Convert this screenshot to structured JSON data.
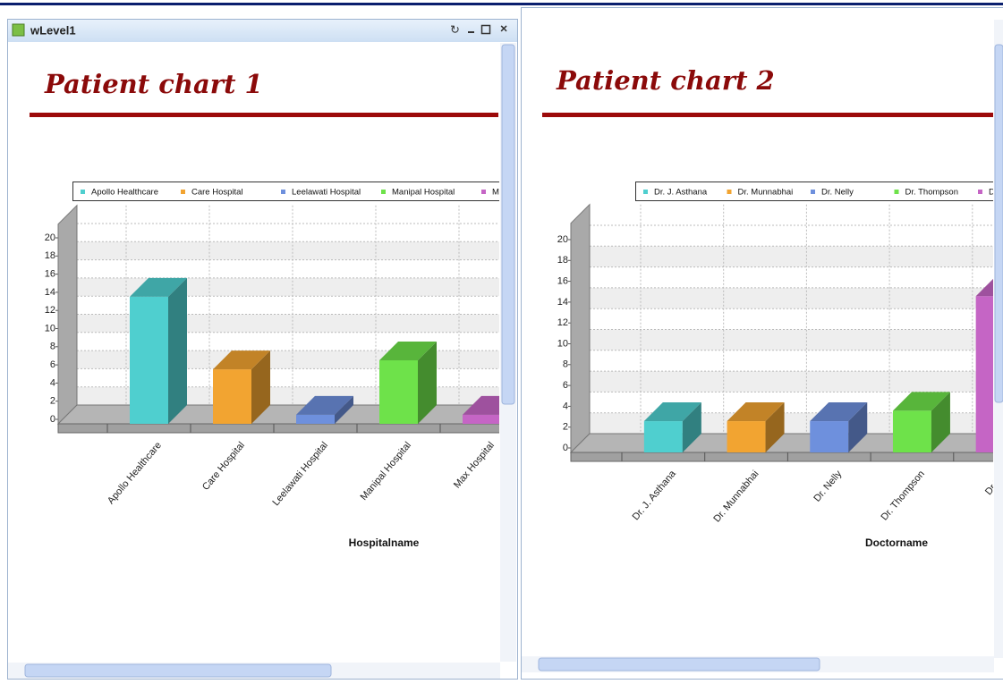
{
  "window": {
    "title": "wLevel1"
  },
  "chart_data": [
    {
      "type": "bar3d",
      "title": "Patient chart 1",
      "categories": [
        "Apollo Healthcare",
        "Care Hospital",
        "Leelawati Hospital",
        "Manipal Hospital",
        "Max Hospital"
      ],
      "values": [
        14,
        6,
        1,
        7,
        1
      ],
      "colors": [
        "#4fcfcf",
        "#f2a431",
        "#6e90dd",
        "#6ee24a",
        "#c565c5"
      ],
      "xlabel": "Hospitalname",
      "ylim": [
        0,
        22
      ],
      "yticks": [
        0,
        2,
        4,
        6,
        8,
        10,
        12,
        14,
        16,
        18,
        20
      ],
      "grid": true,
      "legend": "top"
    },
    {
      "type": "bar3d",
      "title": "Patient chart 2",
      "categories": [
        "Dr. J. Asthana",
        "Dr. Munnabhai",
        "Dr. Nelly",
        "Dr. Thompson",
        "Dr.B.S"
      ],
      "values": [
        3,
        3,
        3,
        4,
        15
      ],
      "colors": [
        "#4fcfcf",
        "#f2a431",
        "#6e90dd",
        "#6ee24a",
        "#c565c5"
      ],
      "xlabel": "Doctorname",
      "ylim": [
        0,
        22
      ],
      "yticks": [
        0,
        2,
        4,
        6,
        8,
        10,
        12,
        14,
        16,
        18,
        20
      ],
      "grid": true,
      "legend": "top"
    }
  ]
}
